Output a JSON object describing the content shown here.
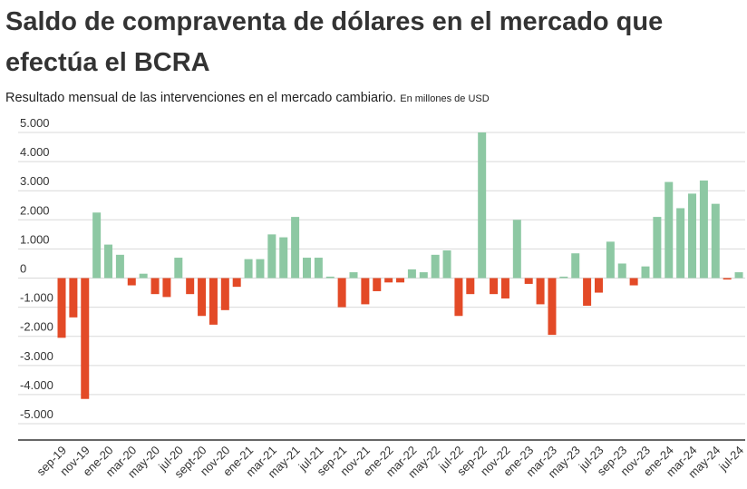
{
  "chart_data": {
    "type": "bar",
    "title": "Saldo de compraventa de dólares en el mercado que efectúa el BCRA",
    "subtitle": "Resultado  mensual de las intervenciones en el mercado cambiario.",
    "unit_note": "En millones de USD",
    "categories": [
      "sep-19",
      null,
      "nov-19",
      null,
      "ene-20",
      null,
      "mar-20",
      null,
      "may-20",
      null,
      "jul-20",
      null,
      "sept-20",
      null,
      "nov-20",
      null,
      "ene-21",
      null,
      "mar-21",
      null,
      "may-21",
      null,
      "jul-21",
      null,
      "sep-21",
      null,
      "nov-21",
      null,
      "ene-22",
      null,
      "mar-22",
      null,
      "may-22",
      null,
      "jul-22",
      null,
      "sep-22",
      null,
      "nov-22",
      null,
      "ene-23",
      null,
      "mar-23",
      null,
      "may-23",
      null,
      "jul-23",
      null,
      "sep-23",
      null,
      "nov-23",
      null,
      "ene-24",
      null,
      "mar-24",
      null,
      "may-24",
      null,
      "jul-24"
    ],
    "values": [
      -2050,
      -1350,
      -4150,
      2250,
      1150,
      800,
      -250,
      150,
      -550,
      -650,
      700,
      -550,
      -1300,
      -1600,
      -1100,
      -300,
      650,
      650,
      1500,
      1400,
      2100,
      700,
      700,
      50,
      -1000,
      200,
      -900,
      -450,
      -150,
      -150,
      300,
      200,
      800,
      950,
      -1300,
      -550,
      5000,
      -550,
      -700,
      2000,
      -200,
      -900,
      -1950,
      50,
      850,
      -950,
      -500,
      1250,
      500,
      -250,
      400,
      2100,
      3300,
      2400,
      2900,
      3350,
      2550,
      -50,
      200
    ],
    "positive_color": "#8dc8a3",
    "negative_color": "#e34a27",
    "ylim": [
      -5560,
      5000
    ],
    "yticks": [
      {
        "value": 5000,
        "label": "5.000"
      },
      {
        "value": 4000,
        "label": "4.000"
      },
      {
        "value": 3000,
        "label": "3.000"
      },
      {
        "value": 2000,
        "label": "2.000"
      },
      {
        "value": 1000,
        "label": "1.000"
      },
      0,
      {
        "value": -1000,
        "label": "-1.000"
      },
      {
        "value": -2000,
        "label": "-2.000"
      },
      {
        "value": -3000,
        "label": "-3.000"
      },
      {
        "value": -4000,
        "label": "-4.000"
      },
      {
        "value": -5000,
        "label": "-5.000"
      }
    ],
    "grid": true
  }
}
